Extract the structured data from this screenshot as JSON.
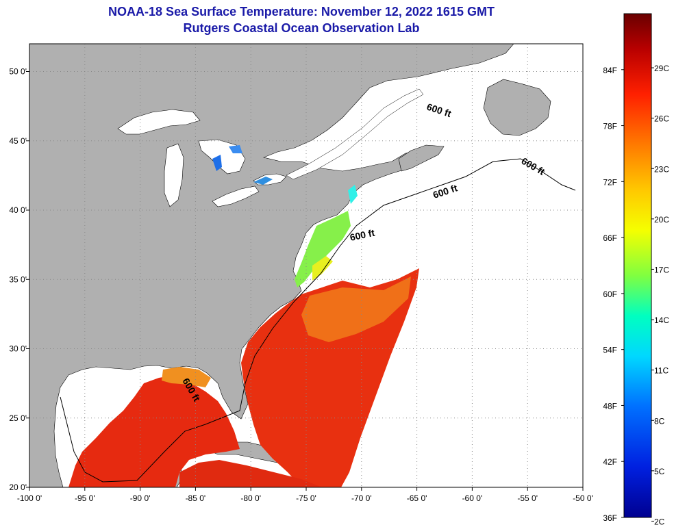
{
  "title": {
    "line1": "NOAA-18 Sea Surface Temperature:  November 12, 2022 1615 GMT",
    "line2": "Rutgers Coastal Ocean Observation Lab"
  },
  "map": {
    "lon_range": [
      -100,
      -50
    ],
    "lat_range": [
      20,
      52
    ],
    "lon_ticks": [
      {
        "value": -100,
        "label": "-100 0'"
      },
      {
        "value": -95,
        "label": "-95 0'"
      },
      {
        "value": -90,
        "label": "-90 0'"
      },
      {
        "value": -85,
        "label": "-85 0'"
      },
      {
        "value": -80,
        "label": "-80 0'"
      },
      {
        "value": -75,
        "label": "-75 0'"
      },
      {
        "value": -70,
        "label": "-70 0'"
      },
      {
        "value": -65,
        "label": "-65 0'"
      },
      {
        "value": -60,
        "label": "-60 0'"
      },
      {
        "value": -55,
        "label": "-55 0'"
      },
      {
        "value": -50,
        "label": "-50 0'"
      }
    ],
    "lat_ticks": [
      {
        "value": 50,
        "label": "50 0'"
      },
      {
        "value": 45,
        "label": "45 0'"
      },
      {
        "value": 40,
        "label": "40 0'"
      },
      {
        "value": 35,
        "label": "35 0'"
      },
      {
        "value": 30,
        "label": "30 0'"
      },
      {
        "value": 25,
        "label": "25 0'"
      },
      {
        "value": 20,
        "label": "20 0'"
      }
    ],
    "contour_labels": [
      "600 ft",
      "600 ft",
      "600 ft",
      "600 ft",
      "600 ft"
    ],
    "colors": {
      "land": "#b0b0b0",
      "water_no_data": "#ffffff",
      "grid": "#808080"
    }
  },
  "colorbar": {
    "fahrenheit_labels": [
      "84F",
      "78F",
      "72F",
      "66F",
      "60F",
      "54F",
      "48F",
      "42F",
      "36F"
    ],
    "celsius_labels": [
      "29C",
      "26C",
      "23C",
      "20C",
      "17C",
      "14C",
      "11C",
      "8C",
      "5C",
      "2C"
    ],
    "gradient": [
      "#6a0000",
      "#c40000",
      "#ff2a00",
      "#ff7a00",
      "#ffc800",
      "#f5ff00",
      "#80ff40",
      "#00ffc0",
      "#00d8ff",
      "#0070ff",
      "#0020e0",
      "#000090"
    ]
  }
}
